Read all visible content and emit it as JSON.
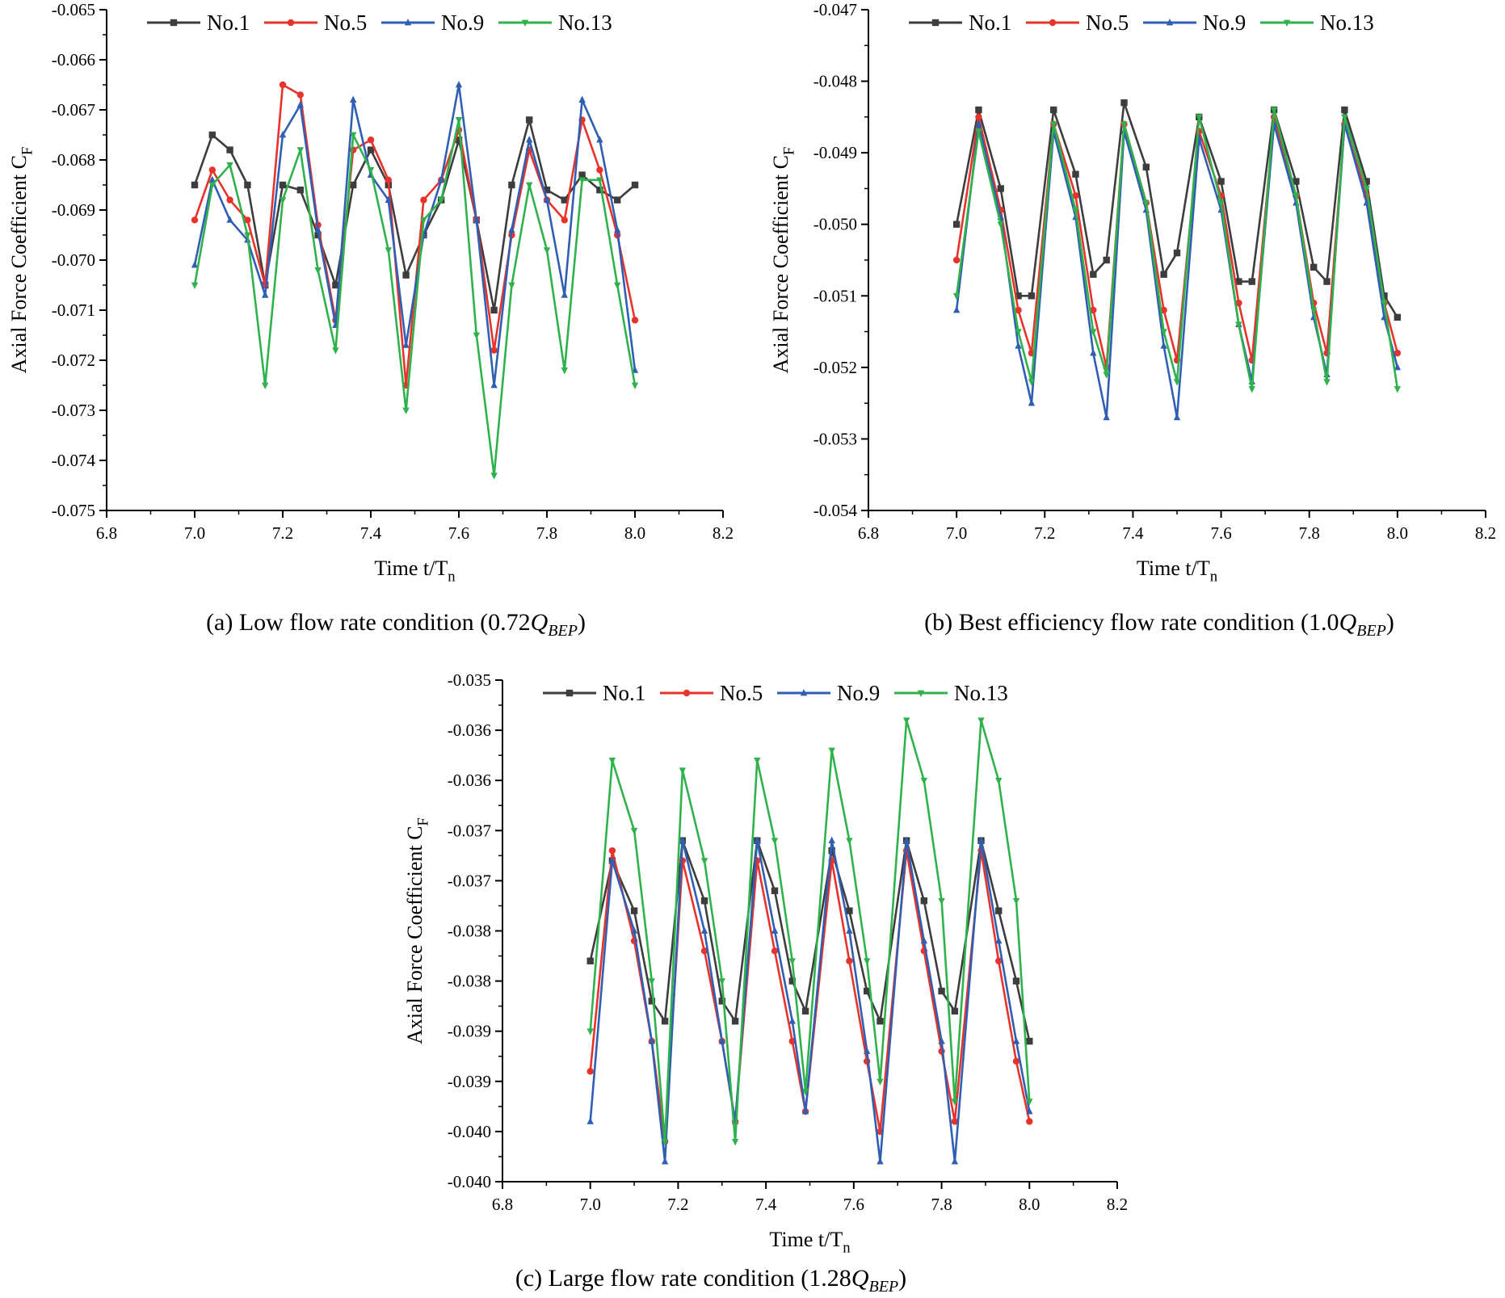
{
  "figure": {
    "colors": {
      "No.1": "#3d3d3d",
      "No.5": "#e8332d",
      "No.9": "#2f5fb3",
      "No.13": "#2fb24c"
    }
  },
  "chart_data": [
    {
      "id": "a",
      "type": "line",
      "caption_prefix": "(a) Low flow rate condition (0.72",
      "caption_q": "Q",
      "caption_sub": "BEP",
      "caption_suffix": ")",
      "xlabel": "Time t/T",
      "xlabel_sub": "n",
      "ylabel": "Axial Force Coefficient C",
      "ylabel_sub": "F",
      "xlim": [
        6.8,
        8.2
      ],
      "ylim": [
        -0.075,
        -0.065
      ],
      "xticks": [
        6.8,
        7.0,
        7.2,
        7.4,
        7.6,
        7.8,
        8.0,
        8.2
      ],
      "xtick_labels": [
        "6.8",
        "7.0",
        "7.2",
        "7.4",
        "7.6",
        "7.8",
        "8.0",
        "8.2"
      ],
      "yticks": [
        -0.065,
        -0.066,
        -0.067,
        -0.068,
        -0.069,
        -0.07,
        -0.071,
        -0.072,
        -0.073,
        -0.074,
        -0.075
      ],
      "ytick_labels": [
        "-0.065",
        "-0.066",
        "-0.067",
        "-0.068",
        "-0.069",
        "-0.070",
        "-0.071",
        "-0.072",
        "-0.073",
        "-0.074",
        "-0.075"
      ],
      "legend_position": "top-left",
      "series": [
        {
          "name": "No.1",
          "marker": "square",
          "x": [
            7.0,
            7.04,
            7.08,
            7.12,
            7.16,
            7.2,
            7.24,
            7.28,
            7.32,
            7.36,
            7.4,
            7.44,
            7.48,
            7.52,
            7.56,
            7.6,
            7.64,
            7.68,
            7.72,
            7.76,
            7.8,
            7.84,
            7.88,
            7.92,
            7.96,
            8.0
          ],
          "y": [
            -0.0685,
            -0.0675,
            -0.0678,
            -0.0685,
            -0.0705,
            -0.0685,
            -0.0686,
            -0.0695,
            -0.0705,
            -0.0685,
            -0.0678,
            -0.0685,
            -0.0703,
            -0.0695,
            -0.0688,
            -0.0676,
            -0.0692,
            -0.071,
            -0.0685,
            -0.0672,
            -0.0686,
            -0.0688,
            -0.0683,
            -0.0686,
            -0.0688,
            -0.0685
          ]
        },
        {
          "name": "No.5",
          "marker": "circle",
          "x": [
            7.0,
            7.04,
            7.08,
            7.12,
            7.16,
            7.2,
            7.24,
            7.28,
            7.32,
            7.36,
            7.4,
            7.44,
            7.48,
            7.52,
            7.56,
            7.6,
            7.64,
            7.68,
            7.72,
            7.76,
            7.8,
            7.84,
            7.88,
            7.92,
            7.96,
            8.0
          ],
          "y": [
            -0.0692,
            -0.0682,
            -0.0688,
            -0.0692,
            -0.0705,
            -0.0665,
            -0.0667,
            -0.0693,
            -0.0712,
            -0.0678,
            -0.0676,
            -0.0684,
            -0.0725,
            -0.0688,
            -0.0684,
            -0.0674,
            -0.0692,
            -0.0718,
            -0.0695,
            -0.0678,
            -0.0688,
            -0.0692,
            -0.0672,
            -0.0682,
            -0.0695,
            -0.0712
          ]
        },
        {
          "name": "No.9",
          "marker": "triangle-up",
          "x": [
            7.0,
            7.04,
            7.08,
            7.12,
            7.16,
            7.2,
            7.24,
            7.28,
            7.32,
            7.36,
            7.4,
            7.44,
            7.48,
            7.52,
            7.56,
            7.6,
            7.64,
            7.68,
            7.72,
            7.76,
            7.8,
            7.84,
            7.88,
            7.92,
            7.96,
            8.0
          ],
          "y": [
            -0.0701,
            -0.0684,
            -0.0692,
            -0.0696,
            -0.0707,
            -0.0675,
            -0.0669,
            -0.0694,
            -0.0713,
            -0.0668,
            -0.0683,
            -0.0688,
            -0.0717,
            -0.0695,
            -0.0684,
            -0.0665,
            -0.0692,
            -0.0725,
            -0.0694,
            -0.0676,
            -0.0688,
            -0.0707,
            -0.0668,
            -0.0676,
            -0.0694,
            -0.0722
          ]
        },
        {
          "name": "No.13",
          "marker": "triangle-down",
          "x": [
            7.0,
            7.04,
            7.08,
            7.12,
            7.16,
            7.2,
            7.24,
            7.28,
            7.32,
            7.36,
            7.4,
            7.44,
            7.48,
            7.52,
            7.56,
            7.6,
            7.64,
            7.68,
            7.72,
            7.76,
            7.8,
            7.84,
            7.88,
            7.92,
            7.96,
            8.0
          ],
          "y": [
            -0.0705,
            -0.0685,
            -0.0681,
            -0.0695,
            -0.0725,
            -0.0688,
            -0.0678,
            -0.0702,
            -0.0718,
            -0.0675,
            -0.0682,
            -0.0698,
            -0.073,
            -0.0692,
            -0.0688,
            -0.0672,
            -0.0715,
            -0.0743,
            -0.0705,
            -0.0685,
            -0.0698,
            -0.0722,
            -0.0684,
            -0.0684,
            -0.0705,
            -0.0725
          ]
        }
      ]
    },
    {
      "id": "b",
      "type": "line",
      "caption_prefix": "(b) Best efficiency flow rate condition (1.0",
      "caption_q": "Q",
      "caption_sub": "BEP",
      "caption_suffix": ")",
      "xlabel": "Time t/T",
      "xlabel_sub": "n",
      "ylabel": "Axial Force Coefficient C",
      "ylabel_sub": "F",
      "xlim": [
        6.8,
        8.2
      ],
      "ylim": [
        -0.054,
        -0.047
      ],
      "xticks": [
        6.8,
        7.0,
        7.2,
        7.4,
        7.6,
        7.8,
        8.0,
        8.2
      ],
      "xtick_labels": [
        "6.8",
        "7.0",
        "7.2",
        "7.4",
        "7.6",
        "7.8",
        "8.0",
        "8.2"
      ],
      "yticks": [
        -0.047,
        -0.048,
        -0.049,
        -0.05,
        -0.051,
        -0.052,
        -0.053,
        -0.054
      ],
      "ytick_labels": [
        "-0.047",
        "-0.048",
        "-0.049",
        "-0.050",
        "-0.051",
        "-0.052",
        "-0.053",
        "-0.054"
      ],
      "legend_position": "top-left",
      "series": [
        {
          "name": "No.1",
          "marker": "square",
          "x": [
            7.0,
            7.05,
            7.1,
            7.14,
            7.17,
            7.22,
            7.27,
            7.31,
            7.34,
            7.38,
            7.43,
            7.47,
            7.5,
            7.55,
            7.6,
            7.64,
            7.67,
            7.72,
            7.77,
            7.81,
            7.84,
            7.88,
            7.93,
            7.97,
            8.0
          ],
          "y": [
            -0.05,
            -0.0484,
            -0.0495,
            -0.051,
            -0.051,
            -0.0484,
            -0.0493,
            -0.0507,
            -0.0505,
            -0.0483,
            -0.0492,
            -0.0507,
            -0.0504,
            -0.0485,
            -0.0494,
            -0.0508,
            -0.0508,
            -0.0484,
            -0.0494,
            -0.0506,
            -0.0508,
            -0.0484,
            -0.0494,
            -0.051,
            -0.0513
          ]
        },
        {
          "name": "No.5",
          "marker": "circle",
          "x": [
            7.0,
            7.05,
            7.1,
            7.14,
            7.17,
            7.22,
            7.27,
            7.31,
            7.34,
            7.38,
            7.43,
            7.47,
            7.5,
            7.55,
            7.6,
            7.64,
            7.67,
            7.72,
            7.77,
            7.81,
            7.84,
            7.88,
            7.93,
            7.97,
            8.0
          ],
          "y": [
            -0.0505,
            -0.0485,
            -0.0498,
            -0.0512,
            -0.0518,
            -0.0486,
            -0.0496,
            -0.0512,
            -0.052,
            -0.0486,
            -0.0497,
            -0.0512,
            -0.0519,
            -0.0487,
            -0.0496,
            -0.0511,
            -0.0519,
            -0.0485,
            -0.0496,
            -0.0511,
            -0.0518,
            -0.0486,
            -0.0496,
            -0.0511,
            -0.0518
          ]
        },
        {
          "name": "No.9",
          "marker": "triangle-up",
          "x": [
            7.0,
            7.05,
            7.1,
            7.14,
            7.17,
            7.22,
            7.27,
            7.31,
            7.34,
            7.38,
            7.43,
            7.47,
            7.5,
            7.55,
            7.6,
            7.64,
            7.67,
            7.72,
            7.77,
            7.81,
            7.84,
            7.88,
            7.93,
            7.97,
            8.0
          ],
          "y": [
            -0.0512,
            -0.0486,
            -0.0499,
            -0.0517,
            -0.0525,
            -0.0487,
            -0.0499,
            -0.0518,
            -0.0527,
            -0.0487,
            -0.0498,
            -0.0517,
            -0.0527,
            -0.0488,
            -0.0498,
            -0.0514,
            -0.0522,
            -0.0486,
            -0.0497,
            -0.0513,
            -0.0521,
            -0.0486,
            -0.0497,
            -0.0513,
            -0.052
          ]
        },
        {
          "name": "No.13",
          "marker": "triangle-down",
          "x": [
            7.0,
            7.05,
            7.1,
            7.14,
            7.17,
            7.22,
            7.27,
            7.31,
            7.34,
            7.38,
            7.43,
            7.47,
            7.5,
            7.55,
            7.6,
            7.64,
            7.67,
            7.72,
            7.77,
            7.81,
            7.84,
            7.88,
            7.93,
            7.97,
            8.0
          ],
          "y": [
            -0.051,
            -0.0487,
            -0.05,
            -0.0515,
            -0.0522,
            -0.0486,
            -0.0498,
            -0.0515,
            -0.0521,
            -0.0486,
            -0.0497,
            -0.0515,
            -0.0522,
            -0.0485,
            -0.0497,
            -0.0514,
            -0.0523,
            -0.0484,
            -0.0496,
            -0.0512,
            -0.0522,
            -0.0485,
            -0.0495,
            -0.0511,
            -0.0523
          ]
        }
      ]
    },
    {
      "id": "c",
      "type": "line",
      "caption_prefix": "(c) Large flow rate condition (1.28",
      "caption_q": "Q",
      "caption_sub": "BEP",
      "caption_suffix": ")",
      "xlabel": "Time t/T",
      "xlabel_sub": "n",
      "ylabel": "Axial Force Coefficient C",
      "ylabel_sub": "F",
      "xlim": [
        6.8,
        8.2
      ],
      "ylim": [
        -0.04,
        -0.035
      ],
      "xticks": [
        6.8,
        7.0,
        7.2,
        7.4,
        7.6,
        7.8,
        8.0,
        8.2
      ],
      "xtick_labels": [
        "6.8",
        "7.0",
        "7.2",
        "7.4",
        "7.6",
        "7.8",
        "8.0",
        "8.2"
      ],
      "yticks": [
        -0.035,
        -0.0355,
        -0.036,
        -0.0365,
        -0.037,
        -0.0375,
        -0.038,
        -0.0385,
        -0.039,
        -0.0395,
        -0.04
      ],
      "ytick_labels": [
        "-0.035",
        "-0.036",
        "-0.036",
        "-0.037",
        "-0.037",
        "-0.038",
        "-0.038",
        "-0.039",
        "-0.039",
        "-0.040",
        "-0.040"
      ],
      "legend_position": "top-left",
      "series": [
        {
          "name": "No.1",
          "marker": "square",
          "x": [
            7.0,
            7.05,
            7.1,
            7.14,
            7.17,
            7.21,
            7.26,
            7.3,
            7.33,
            7.38,
            7.42,
            7.46,
            7.49,
            7.55,
            7.59,
            7.63,
            7.66,
            7.72,
            7.76,
            7.8,
            7.83,
            7.89,
            7.93,
            7.97,
            8.0
          ],
          "y": [
            -0.0378,
            -0.0368,
            -0.0373,
            -0.0382,
            -0.0384,
            -0.0366,
            -0.0372,
            -0.0382,
            -0.0384,
            -0.0366,
            -0.0371,
            -0.038,
            -0.0383,
            -0.0367,
            -0.0373,
            -0.0381,
            -0.0384,
            -0.0366,
            -0.0372,
            -0.0381,
            -0.0383,
            -0.0366,
            -0.0373,
            -0.038,
            -0.0386
          ]
        },
        {
          "name": "No.5",
          "marker": "circle",
          "x": [
            7.0,
            7.05,
            7.1,
            7.14,
            7.17,
            7.21,
            7.26,
            7.3,
            7.33,
            7.38,
            7.42,
            7.46,
            7.49,
            7.55,
            7.59,
            7.63,
            7.66,
            7.72,
            7.76,
            7.8,
            7.83,
            7.89,
            7.93,
            7.97,
            8.0
          ],
          "y": [
            -0.0389,
            -0.0367,
            -0.0376,
            -0.0386,
            -0.0396,
            -0.0368,
            -0.0377,
            -0.0386,
            -0.0394,
            -0.0368,
            -0.0377,
            -0.0386,
            -0.0393,
            -0.0368,
            -0.0378,
            -0.0388,
            -0.0395,
            -0.0367,
            -0.0377,
            -0.0387,
            -0.0394,
            -0.0367,
            -0.0378,
            -0.0388,
            -0.0394
          ]
        },
        {
          "name": "No.9",
          "marker": "triangle-up",
          "x": [
            7.0,
            7.05,
            7.1,
            7.14,
            7.17,
            7.21,
            7.26,
            7.3,
            7.33,
            7.38,
            7.42,
            7.46,
            7.49,
            7.55,
            7.59,
            7.63,
            7.66,
            7.72,
            7.76,
            7.8,
            7.83,
            7.89,
            7.93,
            7.97,
            8.0
          ],
          "y": [
            -0.0394,
            -0.0368,
            -0.0375,
            -0.0386,
            -0.0398,
            -0.0366,
            -0.0375,
            -0.0386,
            -0.0394,
            -0.0366,
            -0.0375,
            -0.0384,
            -0.0393,
            -0.0366,
            -0.0375,
            -0.0387,
            -0.0398,
            -0.0366,
            -0.0376,
            -0.0386,
            -0.0398,
            -0.0366,
            -0.0376,
            -0.0386,
            -0.0393
          ]
        },
        {
          "name": "No.13",
          "marker": "triangle-down",
          "x": [
            7.0,
            7.05,
            7.1,
            7.14,
            7.17,
            7.21,
            7.26,
            7.3,
            7.33,
            7.38,
            7.42,
            7.46,
            7.49,
            7.55,
            7.59,
            7.63,
            7.66,
            7.72,
            7.76,
            7.8,
            7.83,
            7.89,
            7.93,
            7.97,
            8.0
          ],
          "y": [
            -0.0385,
            -0.0358,
            -0.0365,
            -0.038,
            -0.0396,
            -0.0359,
            -0.0368,
            -0.038,
            -0.0396,
            -0.0358,
            -0.0366,
            -0.0378,
            -0.0391,
            -0.0357,
            -0.0366,
            -0.0378,
            -0.039,
            -0.0354,
            -0.036,
            -0.0372,
            -0.0392,
            -0.0354,
            -0.036,
            -0.0372,
            -0.0392
          ]
        }
      ]
    }
  ]
}
